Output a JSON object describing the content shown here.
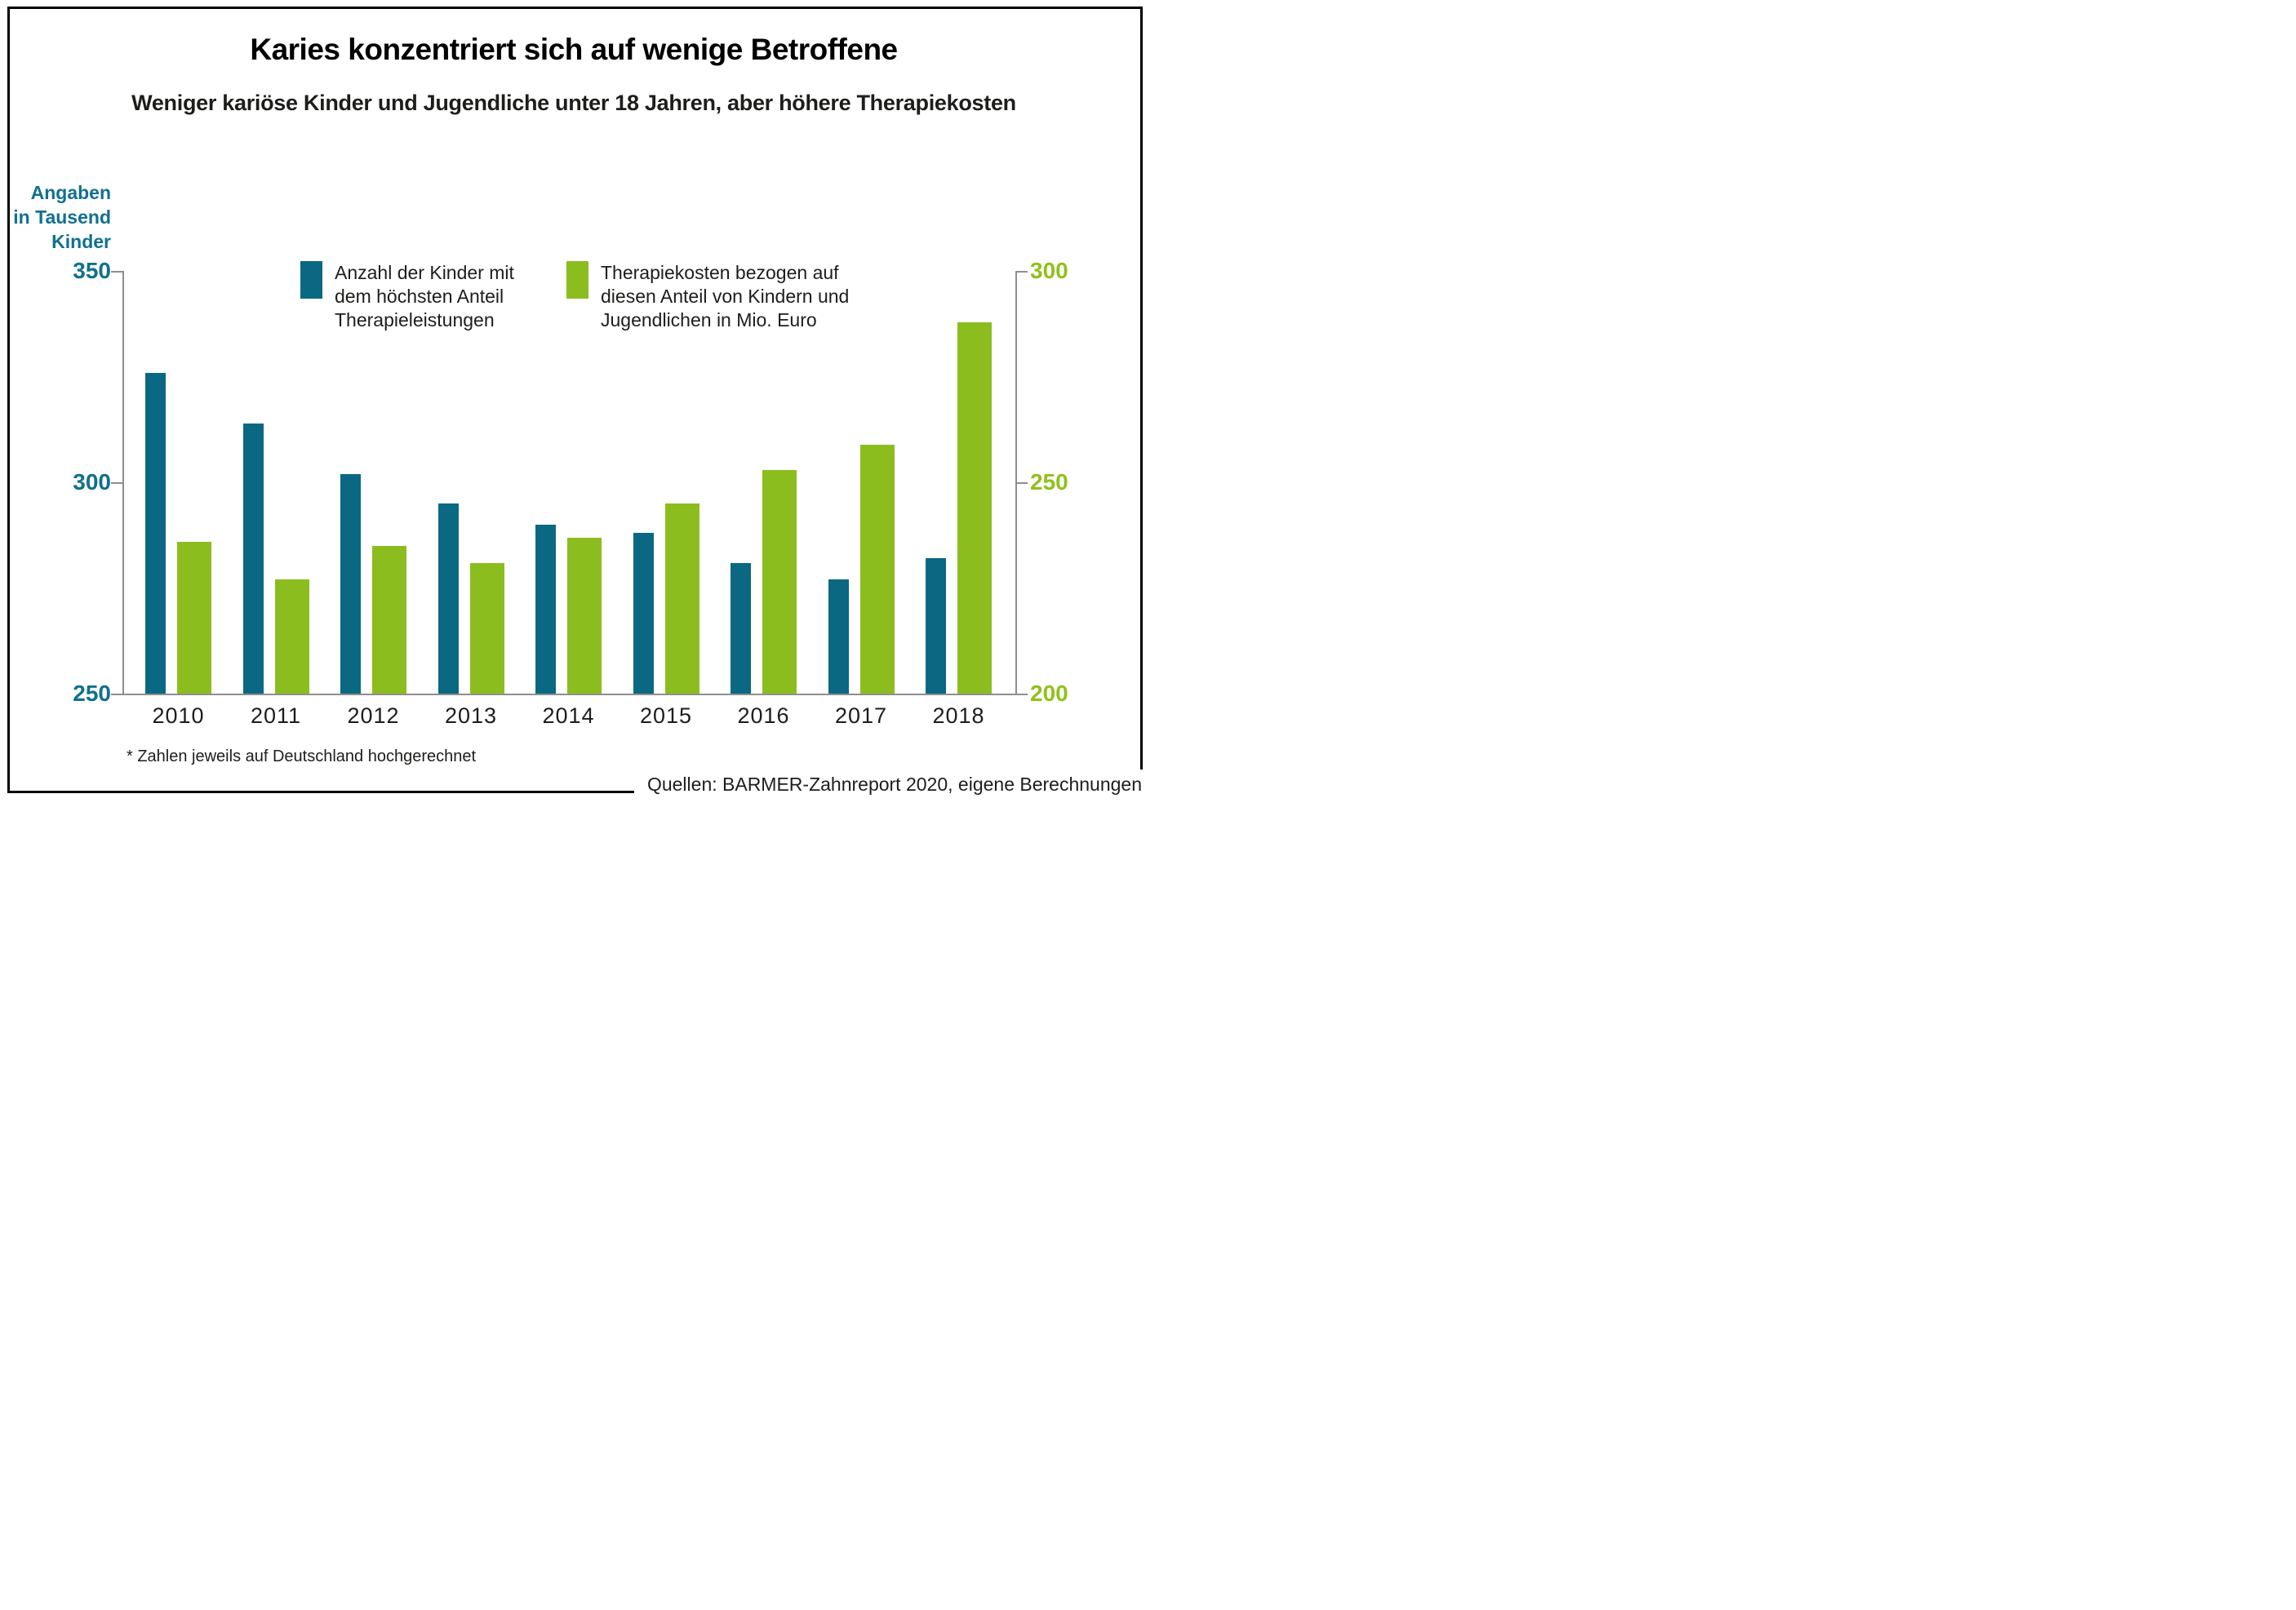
{
  "title": "Karies konzentriert sich auf wenige Betroffene",
  "subtitle": "Weniger kariöse Kinder und Jugendliche unter 18 Jahren, aber höhere Therapiekosten",
  "y_axis_left": {
    "label_lines": [
      "Angaben",
      "in Tausend",
      "Kinder"
    ],
    "tick_labels": [
      "350",
      "300",
      "250"
    ],
    "text_color": "#11708e"
  },
  "y_axis_right": {
    "tick_labels": [
      "300",
      "250",
      "200"
    ],
    "text_color": "#90c11c"
  },
  "legend": {
    "items": [
      {
        "swatch_color": "#0a6882",
        "lines": [
          "Anzahl der Kinder mit",
          "dem höchsten Anteil",
          "Therapieleistungen"
        ]
      },
      {
        "swatch_color": "#8cbd1f",
        "lines": [
          "Therapiekosten bezogen auf",
          "diesen Anteil von Kindern und",
          "Jugendlichen in Mio. Euro"
        ]
      }
    ]
  },
  "footnote": "* Zahlen jeweils auf Deutschland hochgerechnet",
  "source": "Quellen: BARMER-Zahnreport 2020, eigene Berechnungen",
  "colors": {
    "teal_bar": "#0a6882",
    "green_bar": "#8cbd1f",
    "teal_text": "#11708e",
    "green_text": "#90c11c",
    "axis_gray": "#8e8e8e"
  },
  "chart_data": {
    "type": "bar",
    "categories": [
      "2010",
      "2011",
      "2012",
      "2013",
      "2014",
      "2015",
      "2016",
      "2017",
      "2018"
    ],
    "series": [
      {
        "name": "Anzahl der Kinder mit dem höchsten Anteil Therapieleistungen",
        "axis": "left",
        "unit": "Tausend Kinder",
        "color": "#0a6882",
        "values": [
          326,
          314,
          302,
          295,
          290,
          288,
          281,
          277,
          282
        ]
      },
      {
        "name": "Therapiekosten bezogen auf diesen Anteil von Kindern und Jugendlichen in Mio. Euro",
        "axis": "right",
        "unit": "Mio. Euro",
        "color": "#8cbd1f",
        "values": [
          236,
          227,
          235,
          231,
          237,
          245,
          253,
          259,
          288
        ]
      }
    ],
    "left_axis": {
      "min": 250,
      "max": 350,
      "ticks": [
        350,
        300,
        250
      ]
    },
    "right_axis": {
      "min": 200,
      "max": 300,
      "ticks": [
        300,
        250,
        200
      ]
    },
    "grid": false,
    "legend_position": "top-inside"
  }
}
